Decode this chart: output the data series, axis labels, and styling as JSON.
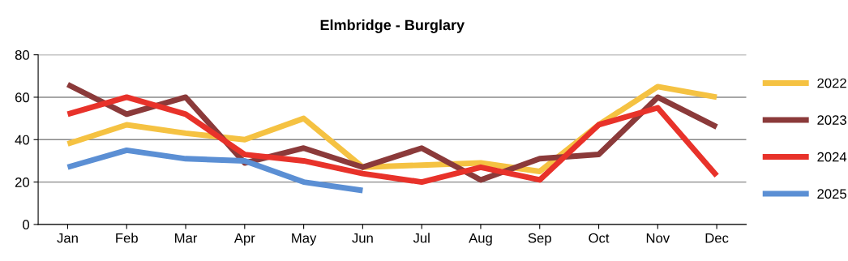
{
  "chart_data": {
    "type": "line",
    "title": "Elmbridge - Burglary",
    "categories": [
      "Jan",
      "Feb",
      "Mar",
      "Apr",
      "May",
      "Jun",
      "Jul",
      "Aug",
      "Sep",
      "Oct",
      "Nov",
      "Dec"
    ],
    "series": [
      {
        "name": "2022",
        "color": "#f5c242",
        "values": [
          38,
          47,
          43,
          40,
          50,
          27,
          28,
          29,
          25,
          47,
          65,
          60
        ]
      },
      {
        "name": "2023",
        "color": "#8b3a3a",
        "values": [
          66,
          52,
          60,
          29,
          36,
          27,
          36,
          21,
          31,
          33,
          60,
          46
        ]
      },
      {
        "name": "2024",
        "color": "#e8322a",
        "values": [
          52,
          60,
          52,
          33,
          30,
          24,
          20,
          27,
          21,
          47,
          55,
          23
        ]
      },
      {
        "name": "2025",
        "color": "#5b8fd4",
        "values": [
          27,
          35,
          31,
          30,
          20,
          16,
          null,
          null,
          null,
          null,
          null,
          null
        ]
      }
    ],
    "ylim": [
      0,
      80
    ],
    "yticks": [
      0,
      20,
      40,
      60,
      80
    ],
    "grid": "y",
    "legend": "right",
    "marker": "none",
    "line_style": "solid"
  }
}
